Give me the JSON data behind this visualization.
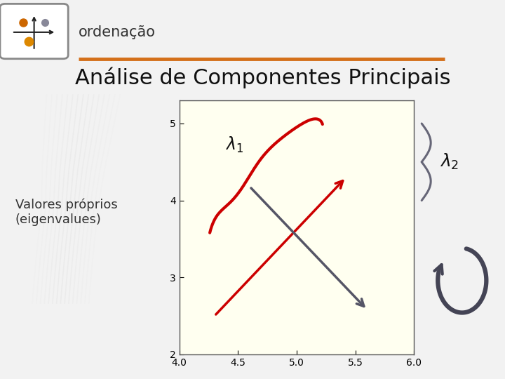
{
  "slide_bg": "#f0f0f0",
  "title": "Análise de Componentes Principais",
  "subtitle": "ordenação",
  "left_label": "Valores próprios\n(eigenvalues)",
  "orange_line_color": "#d4701a",
  "title_color": "#222222",
  "plot_bg": "#fffff0",
  "xlim": [
    4.0,
    6.0
  ],
  "ylim": [
    2.0,
    5.3
  ],
  "xticks": [
    4.0,
    4.5,
    5.0,
    5.5,
    6.0
  ],
  "yticks": [
    2,
    3,
    4,
    5
  ],
  "red_color": "#cc0000",
  "gray_color": "#555566",
  "dark_gray": "#444455"
}
